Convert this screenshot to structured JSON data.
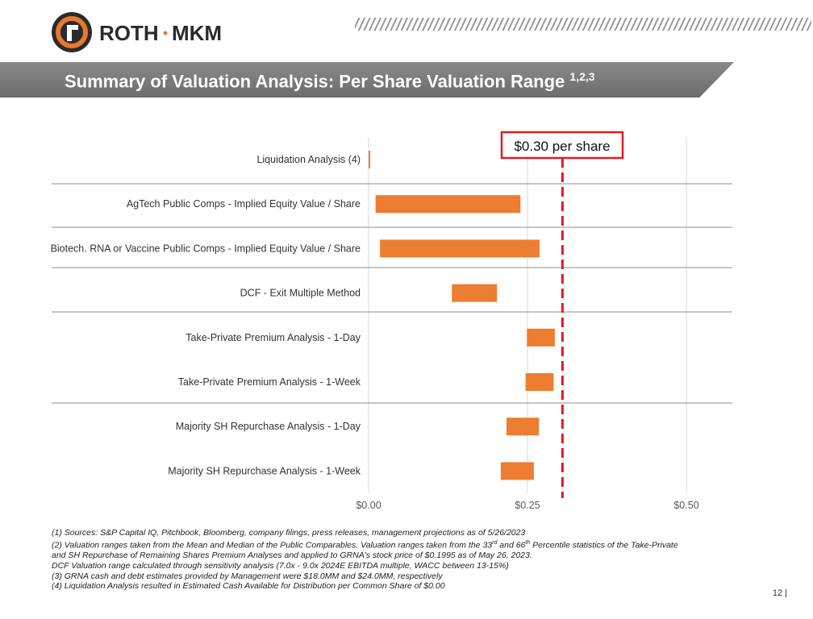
{
  "brand": {
    "name": "ROTH",
    "name2": "MKM",
    "color": "#e8792d"
  },
  "header": {
    "title": "Summary of Valuation Analysis: Per Share Valuation Range",
    "title_sup": "1,2,3"
  },
  "chart_data": {
    "type": "bar",
    "orientation": "horizontal-floating",
    "categories": [
      "Liquidation Analysis (4)",
      "AgTech Public Comps - Implied Equity Value / Share",
      "Biotech. RNA or Vaccine Public Comps - Implied Equity Value / Share",
      "DCF - Exit Multiple Method",
      "Take-Private Premium Analysis - 1-Day",
      "Take-Private Premium Analysis - 1-Week",
      "Majority SH Repurchase Analysis - 1-Day",
      "Majority SH Repurchase Analysis - 1-Week"
    ],
    "series": [
      {
        "name": "Valuation Range",
        "low": [
          0.0,
          0.011,
          0.018,
          0.131,
          0.249,
          0.247,
          0.217,
          0.208
        ],
        "high": [
          0.002,
          0.239,
          0.269,
          0.202,
          0.293,
          0.291,
          0.268,
          0.26
        ],
        "color": "#ed7d31"
      }
    ],
    "xlim": [
      0,
      0.55
    ],
    "xticks": [
      0,
      0.25,
      0.5
    ],
    "xtick_labels": [
      "$0.00",
      "$0.25",
      "$0.50"
    ],
    "reference_line": {
      "value": 0.3,
      "label": "$0.30 per share",
      "color": "#e01b24"
    },
    "group_separators_after": [
      0,
      1,
      2,
      3,
      5
    ],
    "grid": true
  },
  "footnotes": {
    "n1": "(1) Sources: S&P Capital IQ, Pitchbook, Bloomberg, company filings, press releases, management projections as of 5/26/2023",
    "n2a": "(2) Valuation ranges taken from the Mean and Median of the Public Comparables. Valuation ranges taken from the 33",
    "n2sup1": "rd",
    "n2b": " and 66",
    "n2sup2": "th",
    "n2c": " Percentile statistics of the Take-Private",
    "n2d": "and SH Repurchase of Remaining Shares Premium Analyses and applied to GRNA's stock price of $0.1995 as of May 26, 2023.",
    "n2e": "DCF Valuation range calculated through sensitivity analysis (7.0x - 9.0x 2024E EBITDA multiple, WACC between 13-15%)",
    "n3": "(3) GRNA cash and debt estimates provided by Management were $18.0MM and $24.0MM, respectively",
    "n4": "(4) Liquidation Analysis resulted in Estimated Cash Available for Distribution per Common Share of $0.00"
  },
  "page": {
    "number": "12 |"
  }
}
